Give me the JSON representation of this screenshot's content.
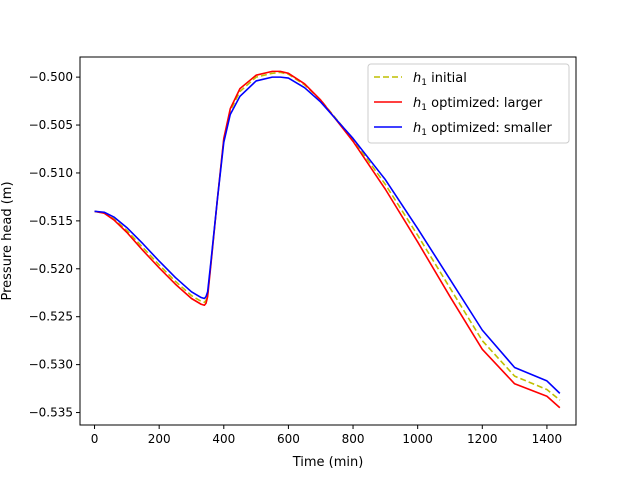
{
  "chart_data": {
    "type": "line",
    "title": "",
    "xlabel": "Time (min)",
    "ylabel": "Pressure head (m)",
    "xlim": [
      -45,
      1490
    ],
    "ylim": [
      -0.5363,
      -0.4979
    ],
    "xticks": [
      0,
      200,
      400,
      600,
      800,
      1000,
      1200,
      1400
    ],
    "xtick_labels": [
      "0",
      "200",
      "400",
      "600",
      "800",
      "1000",
      "1200",
      "1400"
    ],
    "yticks": [
      -0.535,
      -0.53,
      -0.525,
      -0.52,
      -0.515,
      -0.51,
      -0.505,
      -0.5
    ],
    "ytick_labels": [
      "−0.535",
      "−0.530",
      "−0.525",
      "−0.520",
      "−0.515",
      "−0.510",
      "−0.505",
      "−0.500"
    ],
    "grid": false,
    "legend_position": "top-right",
    "series": [
      {
        "name": "initial",
        "legend_symbol": "h",
        "legend_subscript": "1",
        "color": "#bfbf00",
        "dash": "dashed",
        "x": [
          0,
          30,
          60,
          100,
          150,
          200,
          250,
          300,
          330,
          340,
          345,
          350,
          360,
          380,
          400,
          420,
          450,
          500,
          550,
          575,
          600,
          650,
          700,
          800,
          900,
          1000,
          1100,
          1200,
          1300,
          1400,
          1440
        ],
        "y": [
          -0.514,
          -0.5142,
          -0.5148,
          -0.516,
          -0.5178,
          -0.5196,
          -0.5213,
          -0.5228,
          -0.5234,
          -0.5235,
          -0.5233,
          -0.5227,
          -0.5195,
          -0.5128,
          -0.5065,
          -0.5035,
          -0.5015,
          -0.5,
          -0.4996,
          -0.4995,
          -0.4997,
          -0.5008,
          -0.5024,
          -0.5065,
          -0.5112,
          -0.5165,
          -0.522,
          -0.5275,
          -0.5312,
          -0.5326,
          -0.5337
        ]
      },
      {
        "name": "optimized: larger",
        "legend_symbol": "h",
        "legend_subscript": "1",
        "color": "#ff0000",
        "dash": "solid",
        "x": [
          0,
          30,
          60,
          100,
          150,
          200,
          250,
          300,
          330,
          340,
          345,
          350,
          360,
          380,
          400,
          420,
          450,
          500,
          550,
          575,
          600,
          650,
          700,
          800,
          900,
          1000,
          1100,
          1200,
          1300,
          1400,
          1440
        ],
        "y": [
          -0.514,
          -0.5142,
          -0.5149,
          -0.5162,
          -0.5181,
          -0.5199,
          -0.5216,
          -0.5231,
          -0.5237,
          -0.5238,
          -0.5236,
          -0.5229,
          -0.5196,
          -0.5128,
          -0.5064,
          -0.5033,
          -0.5012,
          -0.4998,
          -0.4994,
          -0.4994,
          -0.4996,
          -0.5007,
          -0.5024,
          -0.5067,
          -0.5117,
          -0.5172,
          -0.5229,
          -0.5284,
          -0.532,
          -0.5333,
          -0.5345
        ]
      },
      {
        "name": "optimized: smaller",
        "legend_symbol": "h",
        "legend_subscript": "1",
        "color": "#0000ff",
        "dash": "solid",
        "x": [
          0,
          30,
          60,
          100,
          150,
          200,
          250,
          300,
          330,
          340,
          345,
          350,
          360,
          380,
          400,
          420,
          450,
          500,
          550,
          575,
          600,
          650,
          700,
          800,
          900,
          1000,
          1100,
          1200,
          1300,
          1400,
          1440
        ],
        "y": [
          -0.514,
          -0.5141,
          -0.5146,
          -0.5157,
          -0.5174,
          -0.5192,
          -0.5209,
          -0.5224,
          -0.523,
          -0.5231,
          -0.5229,
          -0.5224,
          -0.5193,
          -0.5128,
          -0.5068,
          -0.5039,
          -0.502,
          -0.5004,
          -0.5,
          -0.5,
          -0.5001,
          -0.5011,
          -0.5026,
          -0.5064,
          -0.5107,
          -0.5158,
          -0.5211,
          -0.5264,
          -0.5303,
          -0.5317,
          -0.533
        ]
      }
    ]
  }
}
